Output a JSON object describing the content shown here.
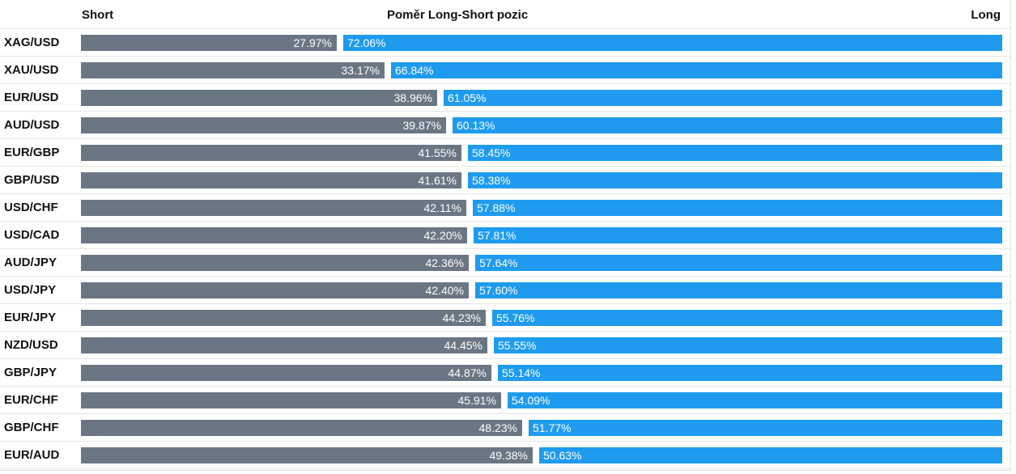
{
  "header": {
    "short_label": "Short",
    "title": "Poměr Long-Short pozic",
    "long_label": "Long"
  },
  "colors": {
    "short": "#6b7684",
    "long": "#1e9bef"
  },
  "chart_data": {
    "type": "bar",
    "orientation": "horizontal-stacked",
    "title": "Poměr Long-Short pozic",
    "categories": [
      "XAG/USD",
      "XAU/USD",
      "EUR/USD",
      "AUD/USD",
      "EUR/GBP",
      "GBP/USD",
      "USD/CHF",
      "USD/CAD",
      "AUD/JPY",
      "USD/JPY",
      "EUR/JPY",
      "NZD/USD",
      "GBP/JPY",
      "EUR/CHF",
      "GBP/CHF",
      "EUR/AUD"
    ],
    "series": [
      {
        "name": "Short",
        "values": [
          27.97,
          33.17,
          38.96,
          39.87,
          41.55,
          41.61,
          42.11,
          42.2,
          42.36,
          42.4,
          44.23,
          44.45,
          44.87,
          45.91,
          48.23,
          49.38
        ],
        "labels": [
          "27.97%",
          "33.17%",
          "38.96%",
          "39.87%",
          "41.55%",
          "41.61%",
          "42.11%",
          "42.20%",
          "42.36%",
          "42.40%",
          "44.23%",
          "44.45%",
          "44.87%",
          "45.91%",
          "48.23%",
          "49.38%"
        ]
      },
      {
        "name": "Long",
        "values": [
          72.06,
          66.84,
          61.05,
          60.13,
          58.45,
          58.38,
          57.88,
          57.81,
          57.64,
          57.6,
          55.76,
          55.55,
          55.14,
          54.09,
          51.77,
          50.63
        ],
        "labels": [
          "72.06%",
          "66.84%",
          "61.05%",
          "60.13%",
          "58.45%",
          "58.38%",
          "57.88%",
          "57.81%",
          "57.64%",
          "57.60%",
          "55.76%",
          "55.55%",
          "55.14%",
          "54.09%",
          "51.77%",
          "50.63%"
        ]
      }
    ],
    "xlim": [
      0,
      100
    ]
  }
}
